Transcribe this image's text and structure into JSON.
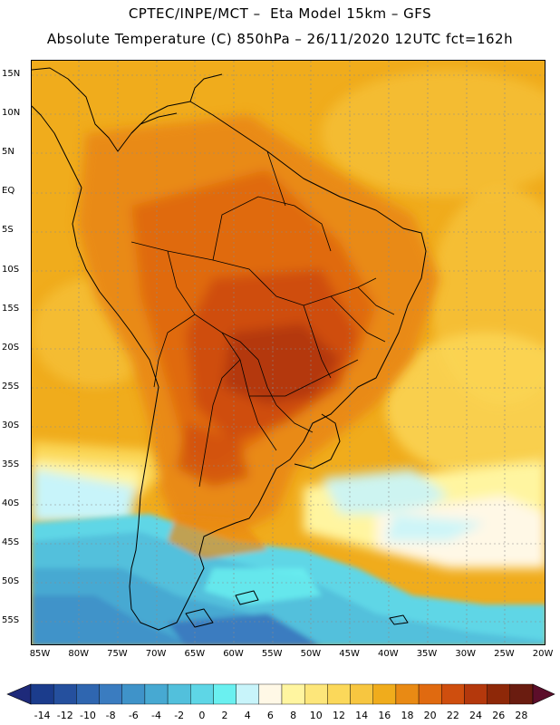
{
  "header": {
    "line1": "CPTEC/INPE/MCT –  Eta Model 15km – GFS",
    "line2": "Absolute Temperature (C) 850hPa – 26/11/2020 12UTC fct=162h"
  },
  "axes": {
    "lat_labels": [
      "15N",
      "10N",
      "5N",
      "EQ",
      "5S",
      "10S",
      "15S",
      "20S",
      "25S",
      "30S",
      "35S",
      "40S",
      "45S",
      "50S",
      "55S"
    ],
    "lon_labels": [
      "85W",
      "80W",
      "75W",
      "70W",
      "65W",
      "60W",
      "55W",
      "50W",
      "45W",
      "40W",
      "35W",
      "30W",
      "25W",
      "20W"
    ]
  },
  "legend": {
    "labels": [
      "-14",
      "-12",
      "-10",
      "-8",
      "-6",
      "-4",
      "-2",
      "0",
      "2",
      "4",
      "6",
      "8",
      "10",
      "12",
      "14",
      "16",
      "18",
      "20",
      "22",
      "24",
      "26",
      "28"
    ],
    "colors": [
      "#1b3c8c",
      "#25509e",
      "#2f66b0",
      "#3a7cc0",
      "#3f93c9",
      "#47a9d2",
      "#52c0dc",
      "#5ed6e6",
      "#6af0f0",
      "#c8f4fa",
      "#fff8e6",
      "#fff5a0",
      "#fde67a",
      "#fbd85a",
      "#f7c640",
      "#f0ac1c",
      "#e98a14",
      "#e06a10",
      "#cf4e0e",
      "#b4380c",
      "#8e2808",
      "#6a1c10"
    ],
    "under_color": "#1e2a7a",
    "over_color": "#5c0e2a"
  }
}
